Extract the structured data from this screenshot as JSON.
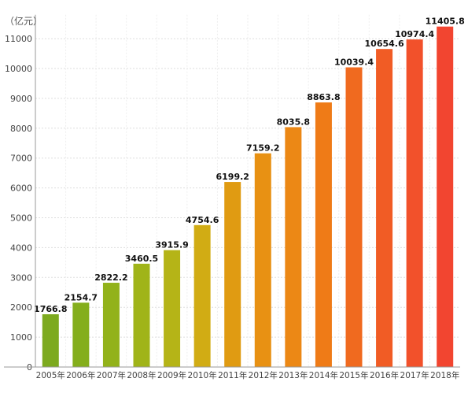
{
  "chart_data": {
    "type": "bar",
    "unit_label": "（亿元）",
    "categories": [
      "2005年",
      "2006年",
      "2007年",
      "2008年",
      "2009年",
      "2010年",
      "2011年",
      "2012年",
      "2013年",
      "2014年",
      "2015年",
      "2016年",
      "2017年",
      "2018年"
    ],
    "values": [
      1766.8,
      2154.7,
      2822.2,
      3460.5,
      3915.9,
      4754.6,
      6199.2,
      7159.2,
      8035.8,
      8863.8,
      10039.4,
      10654.6,
      10974.4,
      11405.8
    ],
    "value_labels": [
      "1766.8",
      "2154.7",
      "2822.2",
      "3460.5",
      "3915.9",
      "4754.6",
      "6199.2",
      "7159.2",
      "8035.8",
      "8863.8",
      "10039.4",
      "10654.6",
      "10974.4",
      "11405.8"
    ],
    "y_ticks": [
      0,
      1000,
      2000,
      3000,
      4000,
      5000,
      6000,
      7000,
      8000,
      9000,
      10000,
      11000
    ],
    "y_tick_labels": [
      "0",
      "1000",
      "2000",
      "3000",
      "4000",
      "5000",
      "6000",
      "7000",
      "8000",
      "9000",
      "10000",
      "11000"
    ],
    "ylim": [
      0,
      11800
    ],
    "grid": true,
    "bar_colors": [
      "#7daa1f",
      "#84ae1c",
      "#92b21a",
      "#a0b419",
      "#b5b417",
      "#d1ac14",
      "#e09b12",
      "#e89113",
      "#ec8815",
      "#ef7b17",
      "#f06a1f",
      "#f15c25",
      "#f2512b",
      "#f24530"
    ],
    "grid_color": "#dddddd",
    "axis_color": "#999999",
    "label_color": "#111111",
    "tick_color": "#444444"
  }
}
